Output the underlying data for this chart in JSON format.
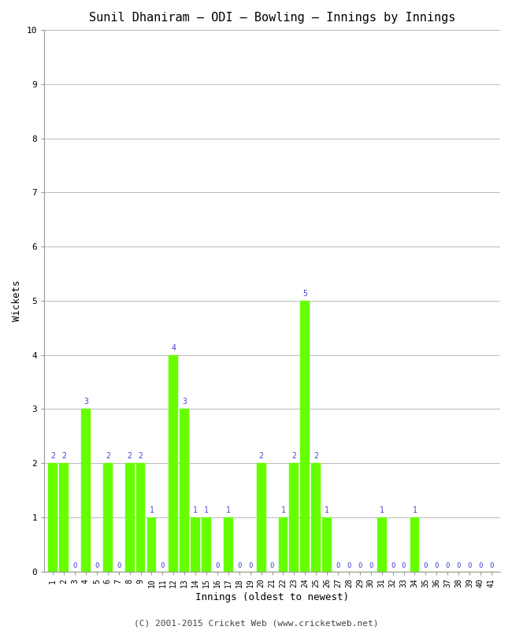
{
  "title": "Sunil Dhaniram – ODI – Bowling – Innings by Innings",
  "xlabel": "Innings (oldest to newest)",
  "ylabel": "Wickets",
  "footer": "(C) 2001-2015 Cricket Web (www.cricketweb.net)",
  "ylim": [
    0,
    10
  ],
  "yticks": [
    0,
    1,
    2,
    3,
    4,
    5,
    6,
    7,
    8,
    9,
    10
  ],
  "innings": [
    1,
    2,
    3,
    4,
    5,
    6,
    7,
    8,
    9,
    10,
    11,
    12,
    13,
    14,
    15,
    16,
    17,
    18,
    19,
    20,
    21,
    22,
    23,
    24,
    25,
    26,
    27,
    28,
    29,
    30,
    31,
    32,
    33,
    34,
    35,
    36,
    37,
    38,
    39,
    40,
    41
  ],
  "wickets": [
    2,
    2,
    0,
    3,
    0,
    2,
    0,
    2,
    2,
    1,
    0,
    4,
    3,
    1,
    1,
    0,
    1,
    0,
    0,
    2,
    0,
    1,
    2,
    5,
    2,
    1,
    0,
    0,
    0,
    0,
    1,
    0,
    0,
    1,
    0,
    0,
    0,
    0,
    0,
    0,
    0
  ],
  "bar_color": "#66ff00",
  "zero_label_color": "#4444cc",
  "nonzero_label_color": "#4444cc",
  "background_color": "#ffffff",
  "grid_color": "#bbbbbb",
  "title_fontsize": 11,
  "label_fontsize": 9,
  "tick_fontsize": 8,
  "footer_fontsize": 8
}
